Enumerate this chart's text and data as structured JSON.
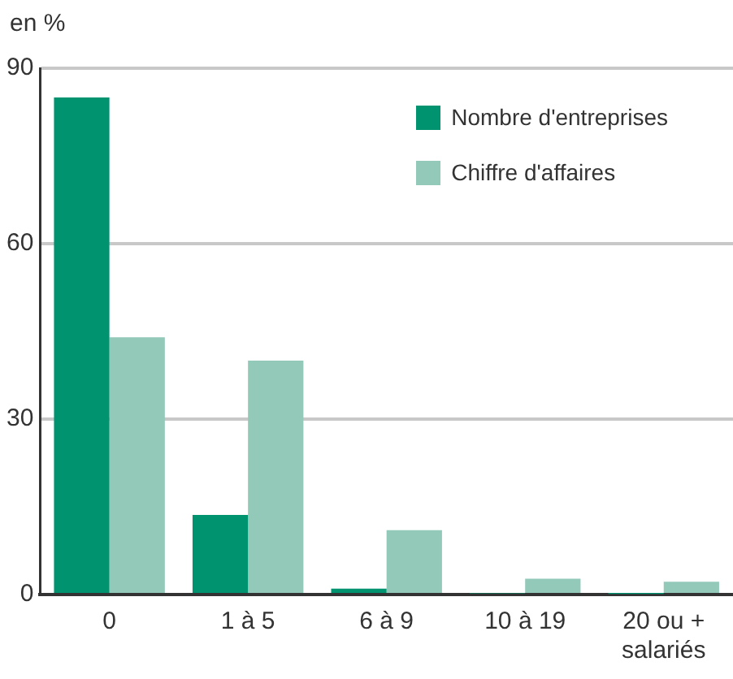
{
  "chart_data": {
    "type": "bar",
    "ylabel": "en %",
    "categories": [
      "0",
      "1 à 5",
      "6 à 9",
      "10 à 19",
      "20 ou +\nsalariés"
    ],
    "series": [
      {
        "name": "Nombre d'entreprises",
        "color": "#009370",
        "values": [
          85,
          13.6,
          1,
          0.2,
          0.1
        ]
      },
      {
        "name": "Chiffre d'affaires",
        "color": "#93c9b9",
        "values": [
          44,
          40,
          11,
          2.7,
          2.2
        ]
      }
    ],
    "ylim": [
      0,
      90
    ],
    "yticks": [
      0,
      30,
      60,
      90
    ],
    "grid": "y",
    "legend": "top right"
  }
}
